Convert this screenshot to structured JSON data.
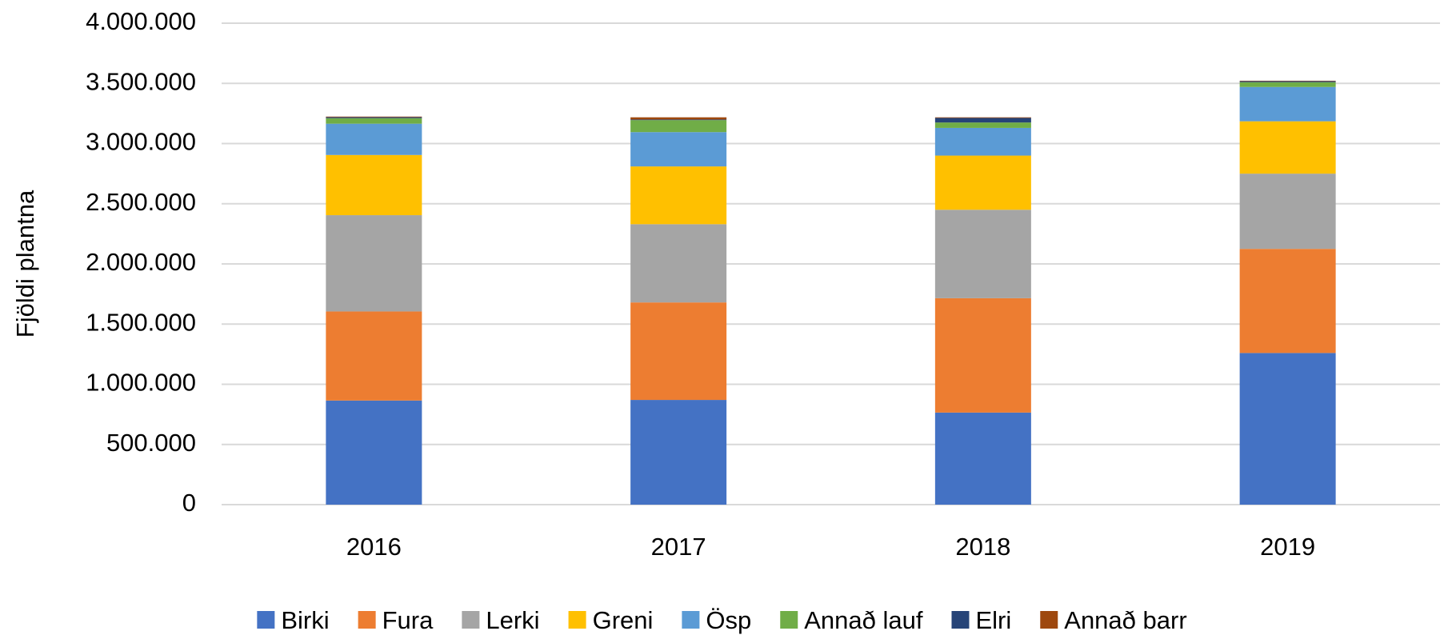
{
  "chart_data": {
    "type": "stacked_bar",
    "ylabel": "Fjöldi plantna",
    "categories": [
      "2016",
      "2017",
      "2018",
      "2019"
    ],
    "series": [
      {
        "name": "Birki",
        "color": "#4472c4",
        "values": [
          865000,
          870000,
          765000,
          1260000
        ]
      },
      {
        "name": "Fura",
        "color": "#ed7d31",
        "values": [
          740000,
          810000,
          950000,
          865000
        ]
      },
      {
        "name": "Lerki",
        "color": "#a5a5a5",
        "values": [
          800000,
          650000,
          735000,
          625000
        ]
      },
      {
        "name": "Greni",
        "color": "#ffc000",
        "values": [
          500000,
          480000,
          450000,
          435000
        ]
      },
      {
        "name": "Ösp",
        "color": "#5b9bd5",
        "values": [
          260000,
          285000,
          230000,
          285000
        ]
      },
      {
        "name": "Annað lauf",
        "color": "#70ad47",
        "values": [
          46000,
          100000,
          45000,
          40000
        ]
      },
      {
        "name": "Elri",
        "color": "#264478",
        "values": [
          8000,
          5000,
          38000,
          8000
        ]
      },
      {
        "name": "Annað barr",
        "color": "#9e480e",
        "values": [
          5000,
          18000,
          5000,
          4000
        ]
      }
    ],
    "ylim": [
      0,
      4000000
    ],
    "yticks": [
      0,
      {
        "value": 500000,
        "label": "500.000"
      },
      {
        "value": 1000000,
        "label": "1.000.000"
      },
      {
        "value": 1500000,
        "label": "1.500.000"
      },
      {
        "value": 2000000,
        "label": "2.000.000"
      },
      {
        "value": 2500000,
        "label": "2.500.000"
      },
      {
        "value": 3000000,
        "label": "3.000.000"
      },
      {
        "value": 3500000,
        "label": "3.500.000"
      },
      {
        "value": 4000000,
        "label": "4.000.000"
      }
    ],
    "grid": true,
    "legend": "bottom"
  }
}
